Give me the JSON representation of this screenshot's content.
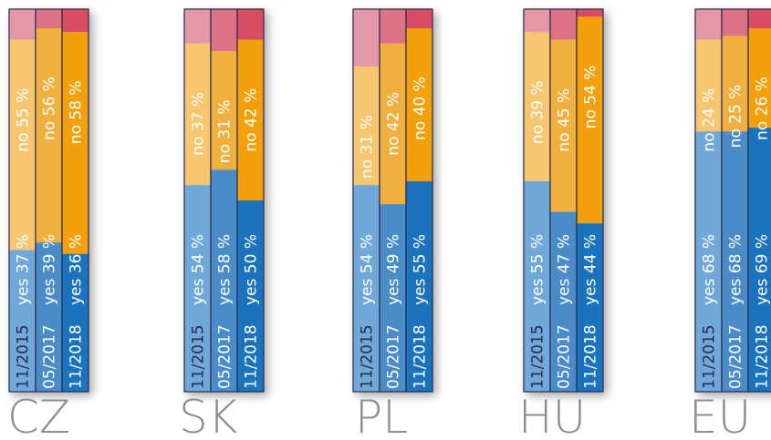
{
  "chart_data": {
    "type": "bar",
    "stacked": true,
    "groups": [
      "CZ",
      "SK",
      "PL",
      "HU",
      "EU"
    ],
    "periods": [
      "11/2015",
      "05/2017",
      "11/2018"
    ],
    "series": [
      {
        "name": "yes",
        "values": [
          [
            37,
            39,
            36
          ],
          [
            54,
            58,
            50
          ],
          [
            54,
            49,
            55
          ],
          [
            55,
            47,
            44
          ],
          [
            68,
            68,
            69
          ]
        ]
      },
      {
        "name": "no",
        "values": [
          [
            55,
            56,
            58
          ],
          [
            37,
            31,
            42
          ],
          [
            31,
            42,
            40
          ],
          [
            39,
            45,
            54
          ],
          [
            24,
            25,
            26
          ]
        ]
      }
    ],
    "ylim": [
      0,
      100
    ],
    "colors": {
      "yes": [
        "#6fa8d9",
        "#4a8cc8",
        "#1c73bd"
      ],
      "no": [
        "#f6c670",
        "#f0b040",
        "#f3a010"
      ],
      "rest": [
        "#e397a7",
        "#dc7386",
        "#d84e65"
      ],
      "text_light": "#ffffff",
      "label_gray": "#8e8e8e",
      "border": "#2a2a4a"
    }
  }
}
